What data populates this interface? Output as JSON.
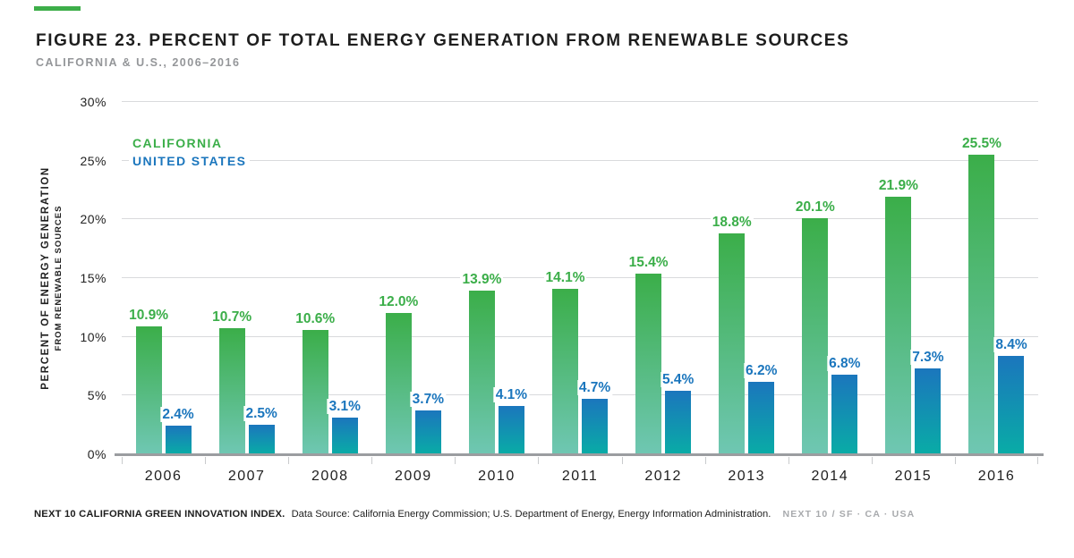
{
  "brand": {
    "accent_color": "#3DAE49"
  },
  "header": {
    "title": "FIGURE 23. PERCENT OF TOTAL ENERGY GENERATION FROM RENEWABLE SOURCES",
    "subtitle": "CALIFORNIA & U.S., 2006–2016"
  },
  "chart_data": {
    "type": "bar",
    "title": "Percent of Total Energy Generation from Renewable Sources",
    "categories": [
      "2006",
      "2007",
      "2008",
      "2009",
      "2010",
      "2011",
      "2012",
      "2013",
      "2014",
      "2015",
      "2016"
    ],
    "series": [
      {
        "name": "CALIFORNIA",
        "values": [
          10.9,
          10.7,
          10.6,
          12.0,
          13.9,
          14.1,
          15.4,
          18.8,
          20.1,
          21.9,
          25.5
        ],
        "color_top": "#3BAE49",
        "color_bottom": "#6FC7B3",
        "label_color": "#3BAE49"
      },
      {
        "name": "UNITED STATES",
        "values": [
          2.4,
          2.5,
          3.1,
          3.7,
          4.1,
          4.7,
          5.4,
          6.2,
          6.8,
          7.3,
          8.4
        ],
        "color_top": "#1B76BD",
        "color_bottom": "#09ACA6",
        "label_color": "#1B76BD"
      }
    ],
    "ylabel_line1": "PERCENT OF ENERGY GENERATION",
    "ylabel_line2": "FROM RENEWABLE SOURCES",
    "yticks": [
      "0%",
      "5%",
      "10%",
      "15%",
      "20%",
      "25%",
      "30%"
    ],
    "ylim": [
      0,
      30
    ],
    "grid": true,
    "legend_position": "top-left-inside",
    "value_label_suffix": "%"
  },
  "footer": {
    "bold_text": "NEXT 10 CALIFORNIA GREEN INNOVATION INDEX.",
    "source_text": "Data Source: California Energy Commission; U.S. Department of Energy, Energy Information Administration.",
    "brand_text": "NEXT 10  /  SF · CA · USA"
  }
}
